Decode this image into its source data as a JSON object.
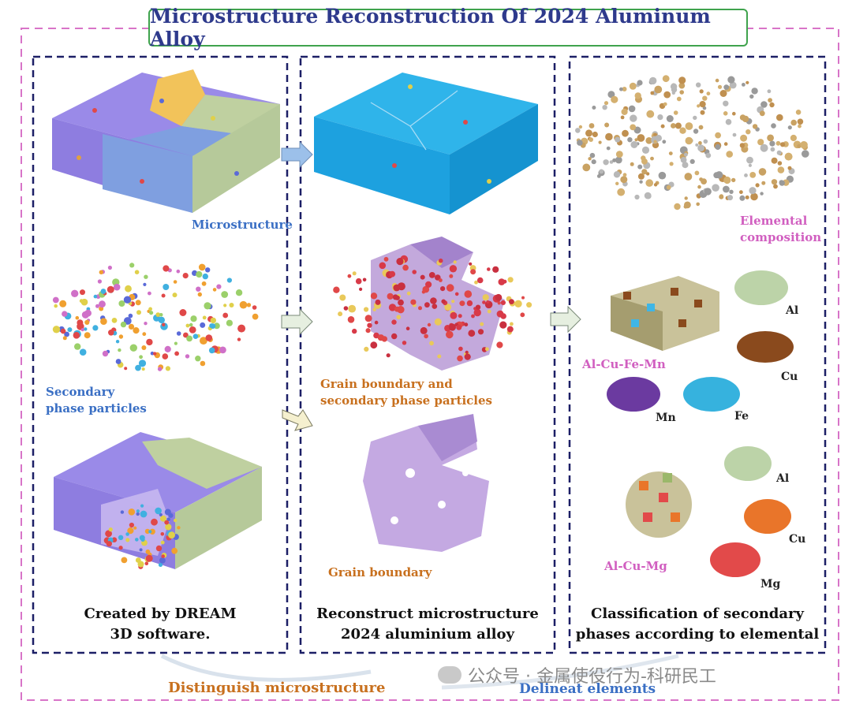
{
  "title": "Microstructure Reconstruction Of 2024 Aluminum Alloy",
  "panel1": {
    "microstructure": "Microstructure",
    "secondary_1": "Secondary",
    "secondary_2": "phase particles",
    "caption_1": "Created by DREAM",
    "caption_2": "3D software."
  },
  "panel2": {
    "gb_particles_1": "Grain boundary and",
    "gb_particles_2": "secondary phase particles",
    "grain_boundary": "Grain boundary",
    "caption_1": "Reconstruct microstructure",
    "caption_2": "2024 aluminium alloy"
  },
  "panel3": {
    "elemental_1": "Elemental",
    "elemental_2": "composition",
    "group1": "Al-Cu-Fe-Mn",
    "group1_el": {
      "al": "Al",
      "cu": "Cu",
      "mn": "Mn",
      "fe": "Fe"
    },
    "group2": "Al-Cu-Mg",
    "group2_el": {
      "al": "Al",
      "cu": "Cu",
      "mg": "Mg"
    },
    "caption_1": "Classification of secondary",
    "caption_2": "phases according to elemental"
  },
  "footer": {
    "distinguish": "Distinguish microstructure",
    "delineat": "Delineat elements"
  },
  "watermark": "公众号 · 金属使役行为-科研民工",
  "colors": {
    "outer_border": "#d874c8",
    "panel_border": "#1c1f66",
    "title_text": "#2e3a8c",
    "title_border": "#3fa34d",
    "blue_label": "#3a6fc4",
    "orange_label": "#c8701e",
    "pink_label": "#d15fc0"
  }
}
